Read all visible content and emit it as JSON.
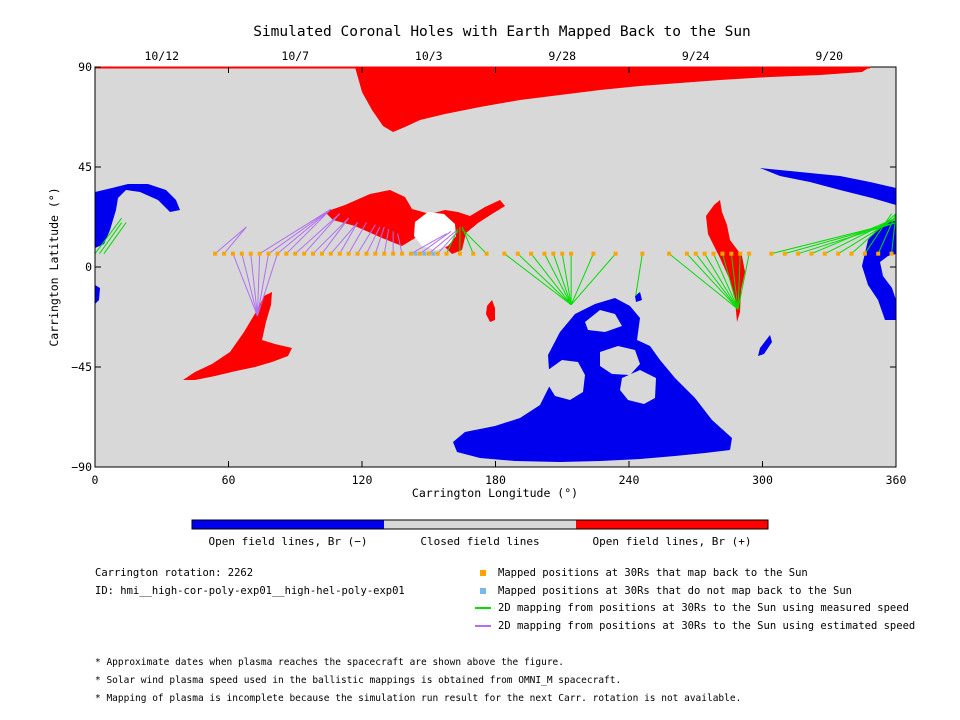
{
  "chart_data": {
    "type": "scatter",
    "title": "Simulated Coronal Holes with Earth Mapped Back to the Sun",
    "xlabel": "Carrington Longitude (°)",
    "ylabel": "Carrington Latitude (°)",
    "xlim": [
      0,
      360
    ],
    "ylim": [
      -90,
      90
    ],
    "x_ticks": [
      "0",
      "60",
      "120",
      "180",
      "240",
      "300",
      "360"
    ],
    "y_ticks": [
      "90",
      "45",
      "0",
      "-45",
      "-90"
    ],
    "top_axis_dates": [
      {
        "label": "10/12",
        "lon": 30
      },
      {
        "label": "10/7",
        "lon": 90
      },
      {
        "label": "10/3",
        "lon": 150
      },
      {
        "label": "9/28",
        "lon": 210
      },
      {
        "label": "9/24",
        "lon": 270
      },
      {
        "label": "9/20",
        "lon": 330
      }
    ],
    "colorbar": [
      {
        "label": "Open field lines, Br (−)",
        "color": "#0000ee"
      },
      {
        "label": "Closed field lines",
        "color": "#d8d8d8"
      },
      {
        "label": "Open field lines, Br (+)",
        "color": "#ff0000"
      }
    ],
    "colors": {
      "negative": "#0000ee",
      "closed": "#d8d8d8",
      "positive": "#ff0000",
      "mapped": "#ffa500",
      "unmapped": "#7ab8e8",
      "measured": "#00dd00",
      "estimated": "#b070f0"
    },
    "mapped_points": [
      {
        "lon": 54,
        "lat": 6
      },
      {
        "lon": 58,
        "lat": 6
      },
      {
        "lon": 62,
        "lat": 6
      },
      {
        "lon": 66,
        "lat": 6
      },
      {
        "lon": 70,
        "lat": 6
      },
      {
        "lon": 74,
        "lat": 6
      },
      {
        "lon": 78,
        "lat": 6
      },
      {
        "lon": 82,
        "lat": 6
      },
      {
        "lon": 86,
        "lat": 6
      },
      {
        "lon": 90,
        "lat": 6
      },
      {
        "lon": 94,
        "lat": 6
      },
      {
        "lon": 98,
        "lat": 6
      },
      {
        "lon": 102,
        "lat": 6
      },
      {
        "lon": 106,
        "lat": 6
      },
      {
        "lon": 110,
        "lat": 6
      },
      {
        "lon": 114,
        "lat": 6
      },
      {
        "lon": 118,
        "lat": 6
      },
      {
        "lon": 122,
        "lat": 6
      },
      {
        "lon": 126,
        "lat": 6
      },
      {
        "lon": 130,
        "lat": 6
      },
      {
        "lon": 134,
        "lat": 6
      },
      {
        "lon": 138,
        "lat": 6
      },
      {
        "lon": 142,
        "lat": 6
      },
      {
        "lon": 146,
        "lat": 6
      },
      {
        "lon": 150,
        "lat": 6
      },
      {
        "lon": 154,
        "lat": 6
      },
      {
        "lon": 158,
        "lat": 6
      },
      {
        "lon": 164,
        "lat": 6
      },
      {
        "lon": 170,
        "lat": 6
      },
      {
        "lon": 176,
        "lat": 6
      },
      {
        "lon": 184,
        "lat": 6
      },
      {
        "lon": 190,
        "lat": 6
      },
      {
        "lon": 196,
        "lat": 6
      },
      {
        "lon": 202,
        "lat": 6
      },
      {
        "lon": 206,
        "lat": 6
      },
      {
        "lon": 210,
        "lat": 6
      },
      {
        "lon": 214,
        "lat": 6
      },
      {
        "lon": 224,
        "lat": 6
      },
      {
        "lon": 234,
        "lat": 6
      },
      {
        "lon": 246,
        "lat": 6
      },
      {
        "lon": 258,
        "lat": 6
      },
      {
        "lon": 266,
        "lat": 6
      },
      {
        "lon": 270,
        "lat": 6
      },
      {
        "lon": 274,
        "lat": 6
      },
      {
        "lon": 278,
        "lat": 6
      },
      {
        "lon": 282,
        "lat": 6
      },
      {
        "lon": 286,
        "lat": 6
      },
      {
        "lon": 290,
        "lat": 6
      },
      {
        "lon": 294,
        "lat": 6
      },
      {
        "lon": 304,
        "lat": 6
      },
      {
        "lon": 310,
        "lat": 6
      },
      {
        "lon": 316,
        "lat": 6
      },
      {
        "lon": 322,
        "lat": 6
      },
      {
        "lon": 328,
        "lat": 6
      },
      {
        "lon": 334,
        "lat": 6
      },
      {
        "lon": 340,
        "lat": 6
      },
      {
        "lon": 346,
        "lat": 6
      },
      {
        "lon": 352,
        "lat": 6
      },
      {
        "lon": 358,
        "lat": 6
      }
    ],
    "unmapped_points": [
      {
        "lon": 144,
        "lat": 6
      },
      {
        "lon": 148,
        "lat": 6
      },
      {
        "lon": 152,
        "lat": 6
      }
    ],
    "estimated_lines": [
      {
        "from": [
          54,
          6
        ],
        "to": [
          68,
          18
        ]
      },
      {
        "from": [
          58,
          6
        ],
        "to": [
          68,
          18
        ]
      },
      {
        "from": [
          62,
          6
        ],
        "to": [
          73,
          -22
        ]
      },
      {
        "from": [
          66,
          6
        ],
        "to": [
          73,
          -22
        ]
      },
      {
        "from": [
          70,
          6
        ],
        "to": [
          73,
          -22
        ]
      },
      {
        "from": [
          74,
          6
        ],
        "to": [
          73,
          -22
        ]
      },
      {
        "from": [
          78,
          6
        ],
        "to": [
          73,
          -22
        ]
      },
      {
        "from": [
          82,
          6
        ],
        "to": [
          73,
          -22
        ]
      },
      {
        "from": [
          74,
          6
        ],
        "to": [
          106,
          26
        ]
      },
      {
        "from": [
          78,
          6
        ],
        "to": [
          106,
          26
        ]
      },
      {
        "from": [
          82,
          6
        ],
        "to": [
          106,
          26
        ]
      },
      {
        "from": [
          86,
          6
        ],
        "to": [
          106,
          26
        ]
      },
      {
        "from": [
          90,
          6
        ],
        "to": [
          110,
          24
        ]
      },
      {
        "from": [
          94,
          6
        ],
        "to": [
          110,
          24
        ]
      },
      {
        "from": [
          98,
          6
        ],
        "to": [
          114,
          22
        ]
      },
      {
        "from": [
          102,
          6
        ],
        "to": [
          114,
          22
        ]
      },
      {
        "from": [
          106,
          6
        ],
        "to": [
          118,
          20
        ]
      },
      {
        "from": [
          110,
          6
        ],
        "to": [
          118,
          20
        ]
      },
      {
        "from": [
          114,
          6
        ],
        "to": [
          122,
          20
        ]
      },
      {
        "from": [
          118,
          6
        ],
        "to": [
          126,
          19
        ]
      },
      {
        "from": [
          122,
          6
        ],
        "to": [
          128,
          18
        ]
      },
      {
        "from": [
          126,
          6
        ],
        "to": [
          130,
          18
        ]
      },
      {
        "from": [
          130,
          6
        ],
        "to": [
          132,
          17
        ]
      },
      {
        "from": [
          134,
          6
        ],
        "to": [
          134,
          16
        ]
      },
      {
        "from": [
          138,
          6
        ],
        "to": [
          136,
          15
        ]
      },
      {
        "from": [
          142,
          6
        ],
        "to": [
          158,
          15
        ]
      },
      {
        "from": [
          146,
          6
        ],
        "to": [
          160,
          16
        ]
      },
      {
        "from": [
          150,
          6
        ],
        "to": [
          162,
          16
        ]
      },
      {
        "from": [
          154,
          6
        ],
        "to": [
          163,
          16
        ]
      }
    ],
    "measured_lines": [
      {
        "from": [
          158,
          6
        ],
        "to": [
          163,
          17
        ]
      },
      {
        "from": [
          164,
          6
        ],
        "to": [
          164,
          18
        ]
      },
      {
        "from": [
          170,
          6
        ],
        "to": [
          165,
          18
        ]
      },
      {
        "from": [
          176,
          6
        ],
        "to": [
          165,
          17
        ]
      },
      {
        "from": [
          184,
          6
        ],
        "to": [
          214,
          -17
        ]
      },
      {
        "from": [
          190,
          6
        ],
        "to": [
          214,
          -17
        ]
      },
      {
        "from": [
          196,
          6
        ],
        "to": [
          214,
          -17
        ]
      },
      {
        "from": [
          202,
          6
        ],
        "to": [
          214,
          -17
        ]
      },
      {
        "from": [
          206,
          6
        ],
        "to": [
          214,
          -17
        ]
      },
      {
        "from": [
          210,
          6
        ],
        "to": [
          214,
          -17
        ]
      },
      {
        "from": [
          214,
          6
        ],
        "to": [
          214,
          -17
        ]
      },
      {
        "from": [
          224,
          6
        ],
        "to": [
          214,
          -17
        ]
      },
      {
        "from": [
          234,
          6
        ],
        "to": [
          214,
          -17
        ]
      },
      {
        "from": [
          246,
          6
        ],
        "to": [
          243,
          -13
        ]
      },
      {
        "from": [
          258,
          6
        ],
        "to": [
          289,
          -19
        ]
      },
      {
        "from": [
          266,
          6
        ],
        "to": [
          289,
          -19
        ]
      },
      {
        "from": [
          270,
          6
        ],
        "to": [
          289,
          -19
        ]
      },
      {
        "from": [
          274,
          6
        ],
        "to": [
          289,
          -19
        ]
      },
      {
        "from": [
          278,
          6
        ],
        "to": [
          289,
          -19
        ]
      },
      {
        "from": [
          282,
          6
        ],
        "to": [
          289,
          -19
        ]
      },
      {
        "from": [
          286,
          6
        ],
        "to": [
          289,
          -19
        ]
      },
      {
        "from": [
          290,
          6
        ],
        "to": [
          289,
          -19
        ]
      },
      {
        "from": [
          294,
          6
        ],
        "to": [
          289,
          -19
        ]
      },
      {
        "from": [
          304,
          6
        ],
        "to": [
          360,
          20
        ]
      },
      {
        "from": [
          310,
          6
        ],
        "to": [
          360,
          20
        ]
      },
      {
        "from": [
          316,
          6
        ],
        "to": [
          360,
          20
        ]
      },
      {
        "from": [
          322,
          6
        ],
        "to": [
          360,
          22
        ]
      },
      {
        "from": [
          328,
          6
        ],
        "to": [
          360,
          22
        ]
      },
      {
        "from": [
          334,
          6
        ],
        "to": [
          360,
          22
        ]
      },
      {
        "from": [
          340,
          6
        ],
        "to": [
          360,
          24
        ]
      },
      {
        "from": [
          346,
          6
        ],
        "to": [
          358,
          24
        ]
      },
      {
        "from": [
          352,
          6
        ],
        "to": [
          360,
          24
        ]
      },
      {
        "from": [
          358,
          6
        ],
        "to": [
          360,
          24
        ]
      },
      {
        "from": [
          0,
          6
        ],
        "to": [
          12,
          22
        ]
      },
      {
        "from": [
          2,
          6
        ],
        "to": [
          12,
          20
        ]
      },
      {
        "from": [
          4,
          6
        ],
        "to": [
          14,
          20
        ]
      }
    ]
  },
  "legend": {
    "mapped": "Mapped positions at 30Rs that map back to the Sun",
    "unmapped": "Mapped positions at 30Rs that do not map back to the Sun",
    "measured": "2D mapping from positions at 30Rs to the Sun using measured speed",
    "estimated": "2D mapping from positions at 30Rs to the Sun using estimated speed"
  },
  "info": {
    "carrington": "Carrington rotation: 2262",
    "id": "ID: hmi__high-cor-poly-exp01__high-hel-poly-exp01"
  },
  "notes": [
    "* Approximate dates when plasma reaches the spacecraft are shown above the figure.",
    "* Solar wind plasma speed used in the ballistic mappings is obtained from OMNI_M spacecraft.",
    "* Mapping of plasma is incomplete because the simulation run result for the next Carr. rotation is not available."
  ]
}
